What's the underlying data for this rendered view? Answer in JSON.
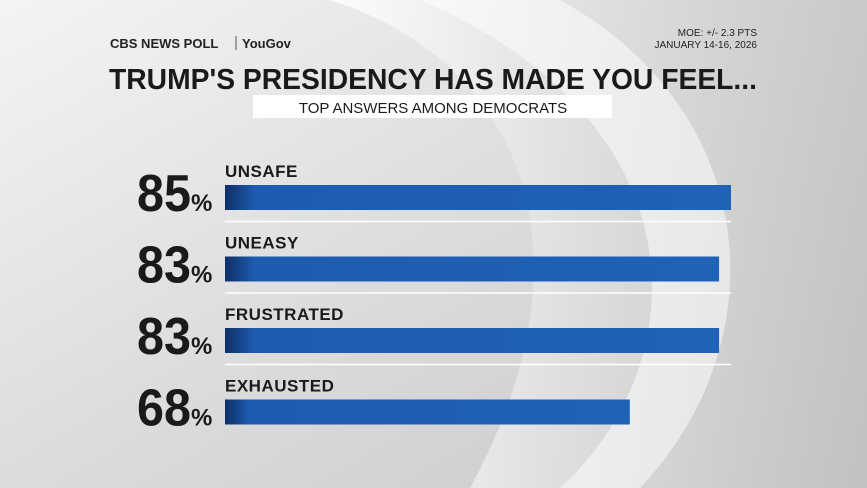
{
  "header": {
    "brand": "CBS NEWS POLL",
    "partner": "YouGov",
    "moe": "MOE: +/- 2.3 PTS",
    "dates": "JANUARY 14-16, 2026"
  },
  "chart_data": {
    "type": "bar",
    "orientation": "horizontal",
    "title": "TRUMP'S PRESIDENCY HAS MADE YOU FEEL...",
    "subtitle": "TOP ANSWERS AMONG DEMOCRATS",
    "categories": [
      "UNSAFE",
      "UNEASY",
      "FRUSTRATED",
      "EXHAUSTED"
    ],
    "values": [
      85,
      83,
      83,
      68
    ],
    "value_labels": [
      "85%",
      "83%",
      "83%",
      "68%"
    ],
    "color": "#1d5cb0"
  }
}
